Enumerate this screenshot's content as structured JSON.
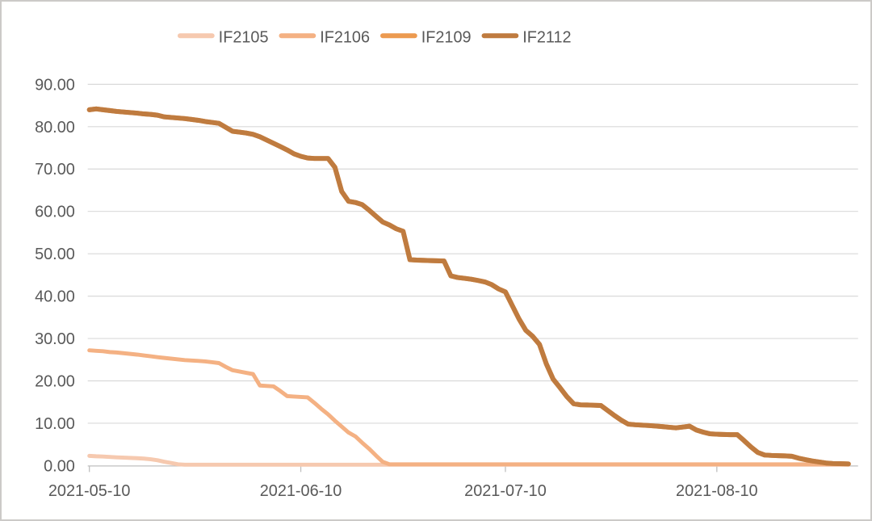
{
  "chart": {
    "background": "#FFFFFF",
    "border_color": "#CCCAC8",
    "text_color": "#595959",
    "gridline_color": "#D9D9D9",
    "axis_line_color": "#BFBFBF",
    "chart_data": {
      "type": "line",
      "title": "",
      "legend_position": "top-center",
      "grid": "horizontal",
      "x_axis": {
        "unit": "days since 2021-05-10",
        "domain": [
          0,
          111.3
        ],
        "ticks": [
          {
            "label": "2021-05-10",
            "day": 0
          },
          {
            "label": "2021-06-10",
            "day": 31
          },
          {
            "label": "2021-07-10",
            "day": 61
          },
          {
            "label": "2021-08-10",
            "day": 92
          }
        ]
      },
      "y_axis": {
        "min": 0,
        "max": 90,
        "step": 10,
        "ticks": [
          {
            "label": "90.00",
            "value": 90
          },
          {
            "label": "80.00",
            "value": 80
          },
          {
            "label": "70.00",
            "value": 70
          },
          {
            "label": "60.00",
            "value": 60
          },
          {
            "label": "50.00",
            "value": 50
          },
          {
            "label": "40.00",
            "value": 40
          },
          {
            "label": "30.00",
            "value": 30
          },
          {
            "label": "20.00",
            "value": 20
          },
          {
            "label": "10.00",
            "value": 10
          },
          {
            "label": "0.00",
            "value": 0
          }
        ]
      },
      "series": [
        {
          "name": "IF2105",
          "color": "#F6C9AF",
          "stroke_width": 5,
          "points": [
            [
              0,
              2.3
            ],
            [
              1,
              2.2
            ],
            [
              2,
              2.15
            ],
            [
              3,
              2.05
            ],
            [
              4,
              1.95
            ],
            [
              7,
              1.75
            ],
            [
              8,
              1.65
            ],
            [
              9,
              1.5
            ],
            [
              10,
              1.25
            ],
            [
              11,
              0.9
            ],
            [
              12,
              0.6
            ],
            [
              13,
              0.3
            ],
            [
              14,
              0.2
            ],
            [
              111.3,
              0.2
            ]
          ]
        },
        {
          "name": "IF2106",
          "color": "#F4B183",
          "stroke_width": 5,
          "points": [
            [
              0,
              27.2
            ],
            [
              1,
              27.1
            ],
            [
              2,
              27.0
            ],
            [
              3,
              26.8
            ],
            [
              4,
              26.7
            ],
            [
              7,
              26.2
            ],
            [
              8,
              26.0
            ],
            [
              9,
              25.8
            ],
            [
              10,
              25.6
            ],
            [
              11,
              25.4
            ],
            [
              14,
              24.9
            ],
            [
              15,
              24.8
            ],
            [
              16,
              24.7
            ],
            [
              17,
              24.6
            ],
            [
              18,
              24.4
            ],
            [
              19,
              24.2
            ],
            [
              20,
              23.3
            ],
            [
              21,
              22.5
            ],
            [
              22,
              22.2
            ],
            [
              23,
              21.9
            ],
            [
              24,
              21.6
            ],
            [
              25,
              18.9
            ],
            [
              26,
              18.8
            ],
            [
              27,
              18.7
            ],
            [
              28,
              17.6
            ],
            [
              29,
              16.4
            ],
            [
              30,
              16.3
            ],
            [
              31,
              16.2
            ],
            [
              32,
              16.1
            ],
            [
              33,
              14.8
            ],
            [
              34,
              13.4
            ],
            [
              35,
              12.1
            ],
            [
              36,
              10.6
            ],
            [
              37,
              9.2
            ],
            [
              38,
              7.8
            ],
            [
              39,
              6.9
            ],
            [
              40,
              5.4
            ],
            [
              41,
              4.0
            ],
            [
              42,
              2.4
            ],
            [
              43,
              0.9
            ],
            [
              44,
              0.3
            ],
            [
              111.3,
              0.3
            ]
          ]
        },
        {
          "name": "IF2109",
          "color": "#EC9A50",
          "stroke_width": 6,
          "points_ref": "IF2112",
          "note": "line coincides with IF2112 and is hidden beneath it"
        },
        {
          "name": "IF2112",
          "color": "#BF7B3F",
          "stroke_width": 6,
          "points": [
            [
              0,
              84.0
            ],
            [
              1,
              84.2
            ],
            [
              2,
              84.0
            ],
            [
              3,
              83.8
            ],
            [
              4,
              83.6
            ],
            [
              7,
              83.2
            ],
            [
              8,
              83.0
            ],
            [
              9,
              82.9
            ],
            [
              10,
              82.7
            ],
            [
              11,
              82.3
            ],
            [
              14,
              81.9
            ],
            [
              15,
              81.7
            ],
            [
              16,
              81.5
            ],
            [
              17,
              81.2
            ],
            [
              18,
              81.0
            ],
            [
              19,
              80.8
            ],
            [
              21,
              78.9
            ],
            [
              22,
              78.7
            ],
            [
              23,
              78.5
            ],
            [
              24,
              78.2
            ],
            [
              25,
              77.6
            ],
            [
              28,
              75.3
            ],
            [
              29,
              74.5
            ],
            [
              30,
              73.6
            ],
            [
              31,
              73.0
            ],
            [
              32,
              72.6
            ],
            [
              33,
              72.5
            ],
            [
              35,
              72.5
            ],
            [
              36,
              70.4
            ],
            [
              37,
              64.7
            ],
            [
              38,
              62.4
            ],
            [
              39,
              62.1
            ],
            [
              40,
              61.6
            ],
            [
              41,
              60.3
            ],
            [
              42,
              58.9
            ],
            [
              43,
              57.5
            ],
            [
              44,
              56.8
            ],
            [
              45,
              55.9
            ],
            [
              46,
              55.3
            ],
            [
              47,
              48.6
            ],
            [
              48,
              48.5
            ],
            [
              50,
              48.4
            ],
            [
              52,
              48.3
            ],
            [
              53,
              44.8
            ],
            [
              54,
              44.4
            ],
            [
              55,
              44.2
            ],
            [
              56,
              44.0
            ],
            [
              57,
              43.7
            ],
            [
              58,
              43.35
            ],
            [
              59,
              42.7
            ],
            [
              60,
              41.7
            ],
            [
              61,
              41.0
            ],
            [
              62,
              37.8
            ],
            [
              63,
              34.6
            ],
            [
              64,
              31.9
            ],
            [
              65,
              30.5
            ],
            [
              66,
              28.6
            ],
            [
              67,
              24.0
            ],
            [
              68,
              20.4
            ],
            [
              69,
              18.4
            ],
            [
              70,
              16.3
            ],
            [
              71,
              14.6
            ],
            [
              72,
              14.35
            ],
            [
              73,
              14.3
            ],
            [
              74,
              14.25
            ],
            [
              75,
              14.2
            ],
            [
              76,
              13.0
            ],
            [
              77,
              11.8
            ],
            [
              78,
              10.7
            ],
            [
              79,
              9.8
            ],
            [
              80,
              9.65
            ],
            [
              81,
              9.55
            ],
            [
              82,
              9.45
            ],
            [
              83,
              9.35
            ],
            [
              84,
              9.2
            ],
            [
              85,
              9.05
            ],
            [
              86,
              8.9
            ],
            [
              87,
              9.1
            ],
            [
              88,
              9.3
            ],
            [
              89,
              8.4
            ],
            [
              90,
              7.9
            ],
            [
              91,
              7.5
            ],
            [
              92,
              7.4
            ],
            [
              93,
              7.35
            ],
            [
              94,
              7.3
            ],
            [
              95,
              7.3
            ],
            [
              96,
              5.9
            ],
            [
              97,
              4.4
            ],
            [
              98,
              3.1
            ],
            [
              99,
              2.5
            ],
            [
              100,
              2.4
            ],
            [
              101,
              2.35
            ],
            [
              102,
              2.3
            ],
            [
              103,
              2.2
            ],
            [
              104,
              1.75
            ],
            [
              105,
              1.4
            ],
            [
              106,
              1.1
            ],
            [
              107,
              0.85
            ],
            [
              108,
              0.6
            ],
            [
              109,
              0.5
            ],
            [
              110,
              0.45
            ],
            [
              111.3,
              0.4
            ]
          ]
        }
      ]
    }
  }
}
